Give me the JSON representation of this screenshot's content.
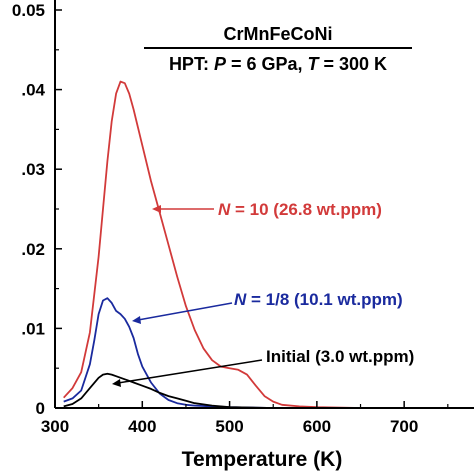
{
  "chart_data": {
    "type": "line",
    "title_line1": "CrMnFeCoNi",
    "title_line2": {
      "prefix": "HPT: ",
      "p_var": "P",
      "p_rest": " = 6 GPa, ",
      "t_var": "T",
      "t_rest": " = 300 K"
    },
    "xlabel": "Temperature (K)",
    "ylabel": "",
    "xlim": [
      300,
      780
    ],
    "ylim": [
      0,
      0.05
    ],
    "xticks": [
      300,
      400,
      500,
      600,
      700
    ],
    "xtick_labels": [
      "300",
      "400",
      "500",
      "600",
      "700"
    ],
    "yticks": [
      0,
      0.01,
      0.02,
      0.03,
      0.04,
      0.05
    ],
    "ytick_labels": [
      "0",
      ".01",
      ".02",
      ".03",
      ".04",
      "0.05"
    ],
    "grid": false,
    "series": [
      {
        "name": "N = 10 (26.8 wt.ppm)",
        "label_parts": {
          "var": "N",
          "rest": " = 10 (26.8 wt.ppm)"
        },
        "color": "#d23a3a",
        "x": [
          310,
          320,
          330,
          340,
          350,
          360,
          365,
          370,
          375,
          380,
          385,
          390,
          400,
          410,
          420,
          430,
          440,
          450,
          460,
          470,
          480,
          490,
          500,
          510,
          520,
          530,
          540,
          550,
          560,
          580,
          600,
          650,
          700,
          780
        ],
        "y": [
          0.0013,
          0.0025,
          0.0045,
          0.0095,
          0.019,
          0.031,
          0.036,
          0.0395,
          0.041,
          0.0408,
          0.0395,
          0.0375,
          0.033,
          0.0285,
          0.0245,
          0.0205,
          0.0165,
          0.0128,
          0.0098,
          0.0075,
          0.006,
          0.0052,
          0.005,
          0.0048,
          0.0042,
          0.0028,
          0.0015,
          0.0008,
          0.0004,
          0.0002,
          0.0001,
          0.0,
          0.0,
          0.0
        ]
      },
      {
        "name": "N = 1/8 (10.1 wt.ppm)",
        "label_parts": {
          "var": "N",
          "rest": " = 1/8 (10.1 wt.ppm)"
        },
        "color": "#1a2a9e",
        "x": [
          310,
          320,
          330,
          340,
          345,
          350,
          355,
          360,
          365,
          370,
          375,
          380,
          385,
          390,
          395,
          400,
          410,
          420,
          430,
          440,
          450,
          460,
          480,
          500,
          550,
          600,
          700,
          780
        ],
        "y": [
          0.0008,
          0.0012,
          0.0022,
          0.0055,
          0.0085,
          0.0118,
          0.0135,
          0.0138,
          0.0132,
          0.0122,
          0.0118,
          0.0112,
          0.0102,
          0.0088,
          0.0068,
          0.0052,
          0.0032,
          0.0018,
          0.001,
          0.0006,
          0.0004,
          0.0003,
          0.0002,
          0.0001,
          0.0,
          0.0,
          0.0,
          0.0
        ]
      },
      {
        "name": "Initial (3.0 wt.ppm)",
        "label_parts": {
          "var": "",
          "rest": "Initial (3.0 wt.ppm)"
        },
        "color": "#000000",
        "x": [
          310,
          320,
          330,
          340,
          350,
          355,
          360,
          365,
          370,
          380,
          390,
          400,
          410,
          420,
          430,
          440,
          450,
          460,
          480,
          500,
          550,
          600,
          700,
          780
        ],
        "y": [
          0.0002,
          0.0005,
          0.0012,
          0.0025,
          0.0038,
          0.0042,
          0.0043,
          0.0042,
          0.004,
          0.0036,
          0.0032,
          0.0028,
          0.0024,
          0.0019,
          0.0015,
          0.0012,
          0.0009,
          0.0006,
          0.0003,
          0.0001,
          0.0,
          0.0,
          0.0,
          0.0
        ]
      }
    ]
  }
}
